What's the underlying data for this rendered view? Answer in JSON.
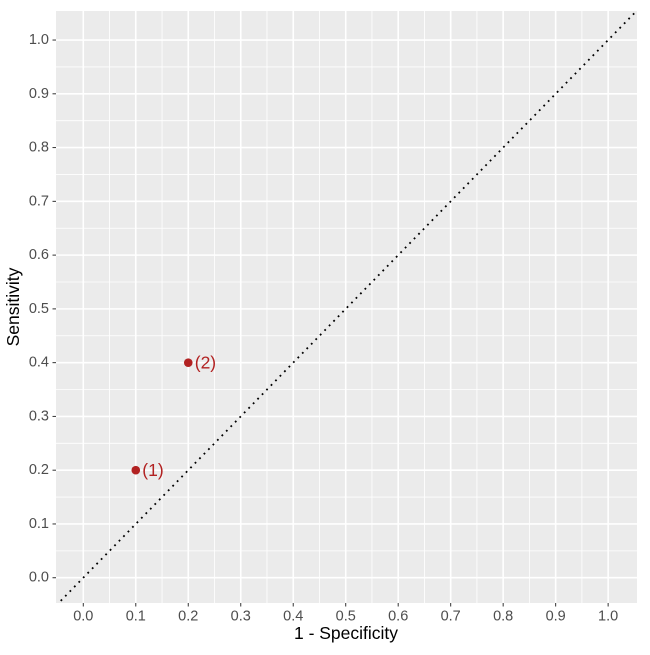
{
  "chart_data": {
    "type": "scatter",
    "title": "",
    "xlabel": "1 - Specificity",
    "ylabel": "Sensitivity",
    "xlim": [
      -0.052,
      1.055
    ],
    "ylim": [
      -0.047,
      1.054
    ],
    "grid": true,
    "legend": "none",
    "x_ticks": [
      {
        "value": 0.0,
        "label": "0.0"
      },
      {
        "value": 0.1,
        "label": "0.1"
      },
      {
        "value": 0.2,
        "label": "0.2"
      },
      {
        "value": 0.3,
        "label": "0.3"
      },
      {
        "value": 0.4,
        "label": "0.4"
      },
      {
        "value": 0.5,
        "label": "0.5"
      },
      {
        "value": 0.6,
        "label": "0.6"
      },
      {
        "value": 0.7,
        "label": "0.7"
      },
      {
        "value": 0.8,
        "label": "0.8"
      },
      {
        "value": 0.9,
        "label": "0.9"
      },
      {
        "value": 1.0,
        "label": "1.0"
      }
    ],
    "y_ticks": [
      {
        "value": 0.0,
        "label": "0.0"
      },
      {
        "value": 0.1,
        "label": "0.1"
      },
      {
        "value": 0.2,
        "label": "0.2"
      },
      {
        "value": 0.3,
        "label": "0.3"
      },
      {
        "value": 0.4,
        "label": "0.4"
      },
      {
        "value": 0.5,
        "label": "0.5"
      },
      {
        "value": 0.6,
        "label": "0.6"
      },
      {
        "value": 0.7,
        "label": "0.7"
      },
      {
        "value": 0.8,
        "label": "0.8"
      },
      {
        "value": 0.9,
        "label": "0.9"
      },
      {
        "value": 1.0,
        "label": "1.0"
      }
    ],
    "minor_ticks": [
      0.05,
      0.15,
      0.25,
      0.35,
      0.45,
      0.55,
      0.65,
      0.75,
      0.85,
      0.95
    ],
    "points": [
      {
        "x": 0.1,
        "y": 0.2,
        "label": "(1)"
      },
      {
        "x": 0.2,
        "y": 0.4,
        "label": "(2)"
      }
    ],
    "reference_line": {
      "style": "dotted",
      "from": {
        "x": -0.06,
        "y": -0.06
      },
      "to": {
        "x": 1.06,
        "y": 1.06
      },
      "color": "#000000"
    },
    "colors": {
      "figure_background": "#FFFFFF",
      "panel_background": "#EBEBEB",
      "grid_major": "#FFFFFF",
      "grid_minor": "#FFFFFF",
      "tick_mark": "#333333",
      "tick_label": "#4D4D4D",
      "axis_title": "#000000",
      "point": "#B22222",
      "point_label": "#B22222"
    }
  }
}
